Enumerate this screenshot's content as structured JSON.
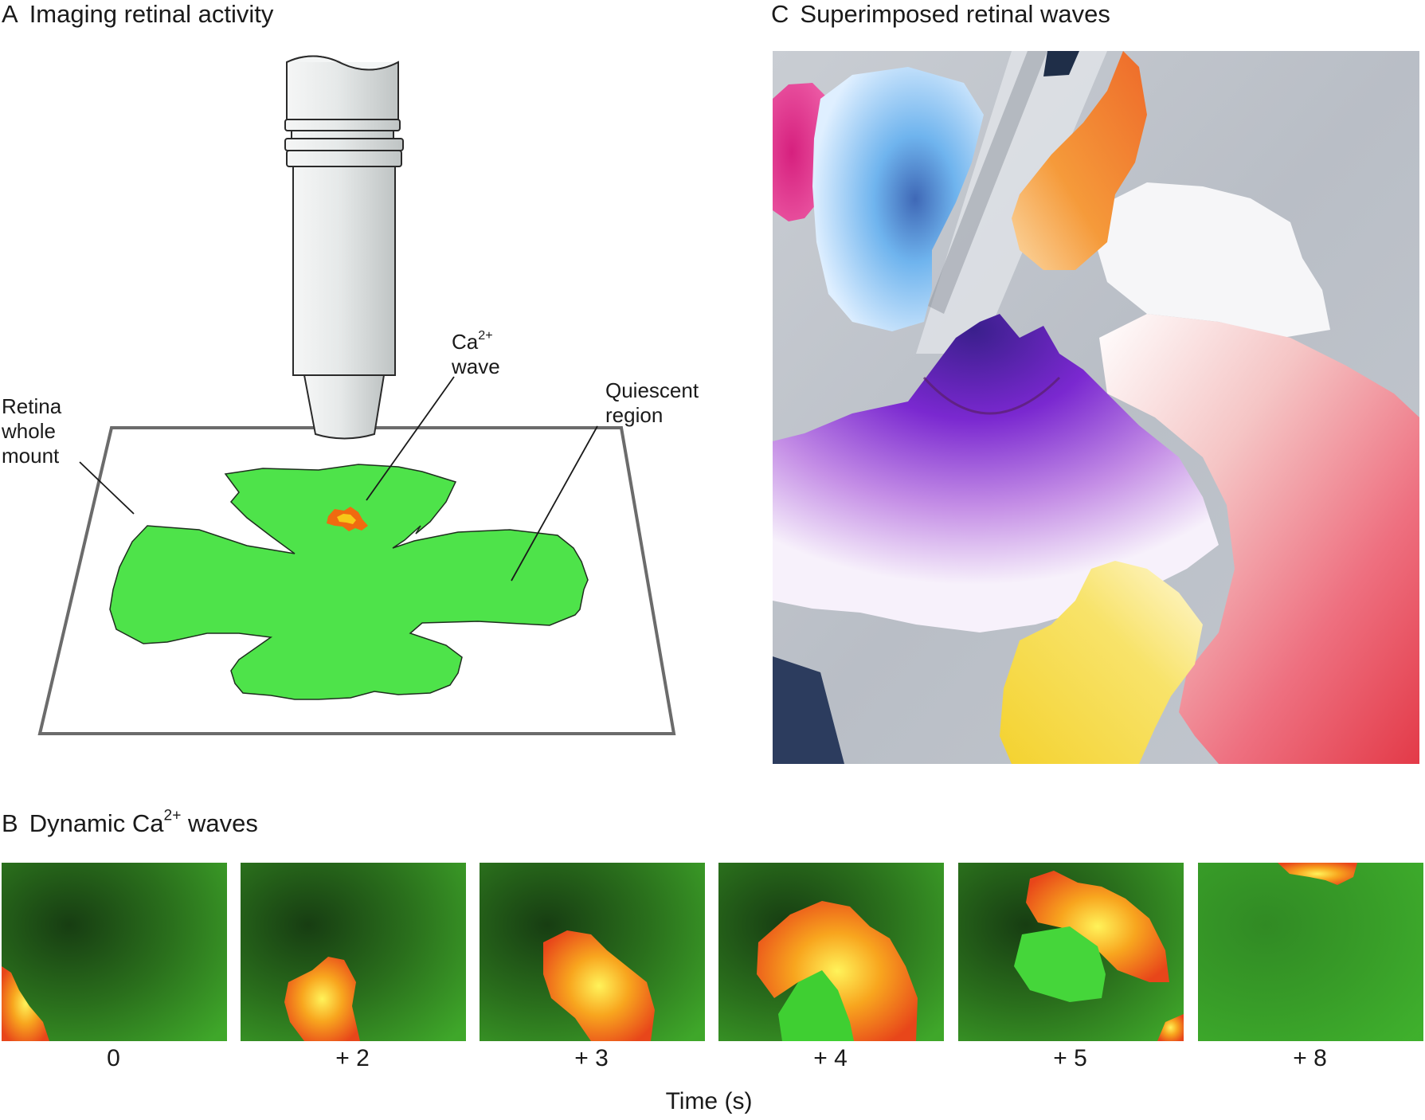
{
  "panel_a": {
    "letter": "A",
    "title": "Imaging retinal activity",
    "labels": {
      "retina": [
        "Retina",
        "whole",
        "mount"
      ],
      "ca_base": "Ca",
      "ca_sup": "2+",
      "ca_line2": "wave",
      "quiescent": [
        "Quiescent",
        "region"
      ]
    },
    "colors": {
      "retina": "#4ee34a",
      "wave_outer": "#f06a10",
      "wave_inner": "#f7c818",
      "lens": "#dfe3e3"
    }
  },
  "panel_b": {
    "letter": "B",
    "title_pre": "Dynamic Ca",
    "title_sup": "2+",
    "title_post": " waves",
    "frames": [
      {
        "time": "0"
      },
      {
        "time": "+ 2"
      },
      {
        "time": "+ 3"
      },
      {
        "time": "+ 4"
      },
      {
        "time": "+ 5"
      },
      {
        "time": "+ 8"
      }
    ],
    "axis_label": "Time (s)"
  },
  "panel_c": {
    "letter": "C",
    "title": "Superimposed retinal waves",
    "wave_colors": [
      "#e0388c",
      "#6fb4ee",
      "#f59a3a",
      "#ffffff",
      "#7a28d0",
      "#ee4456",
      "#f5d83a"
    ]
  }
}
